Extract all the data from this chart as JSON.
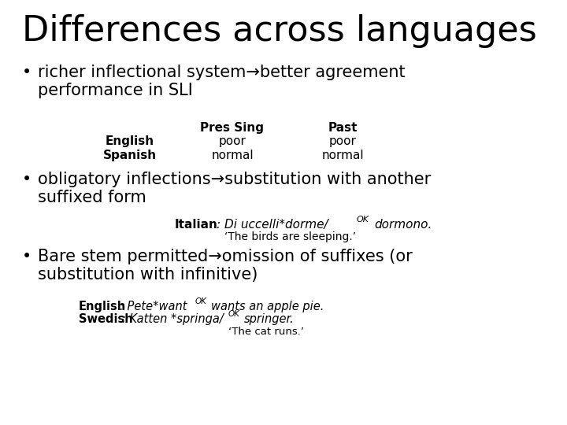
{
  "title": "Differences across languages",
  "background_color": "#ffffff",
  "title_fontsize": 32,
  "bullets": [
    {
      "text": "richer inflectional system→better agreement\nperformance in SLI",
      "fontsize": 15
    },
    {
      "text": "obligatory inflections→substitution with another\nsuffixed form",
      "fontsize": 15
    },
    {
      "text": "Bare stem permitted→omission of suffixes (or\nsubstitution with infinitive)",
      "fontsize": 15
    }
  ],
  "table_header_fontsize": 11,
  "table_row_fontsize": 11,
  "italian_fontsize": 11,
  "eng_swe_fontsize": 10.5
}
